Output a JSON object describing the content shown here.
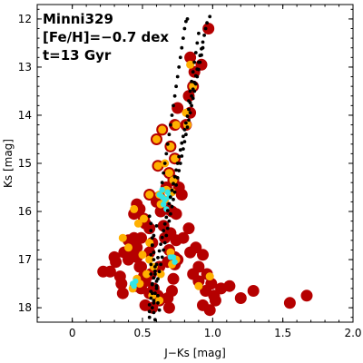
{
  "chart_data": {
    "type": "scatter",
    "title": "",
    "xlabel": "J−Ks [mag]",
    "ylabel": "Ks [mag]",
    "xlim": [
      -0.25,
      2.0
    ],
    "ylim": [
      18.3,
      11.7
    ],
    "y_inverted": true,
    "grid": false,
    "xticks": [
      "0",
      "0.5",
      "1.0",
      "1.5",
      "2.0"
    ],
    "yticks": [
      "12",
      "13",
      "14",
      "15",
      "16",
      "17",
      "18"
    ],
    "annotations": [
      "Minni329",
      "[Fe/H]=−0.7 dex",
      "t=13 Gyr"
    ],
    "colors": {
      "stars_red": "#B50000",
      "stars_orange": "#FFB000",
      "stars_cyan": "#33E5E5",
      "isochrone": "#000000"
    },
    "series": [
      {
        "role": "observed stars",
        "marker": "large red circle",
        "x": [
          0.97,
          0.84,
          0.92,
          0.87,
          0.86,
          0.83,
          0.75,
          0.84,
          0.81,
          0.73,
          0.64,
          0.6,
          0.7,
          0.73,
          0.61,
          0.69,
          0.72,
          0.67,
          0.76,
          0.78,
          0.55,
          0.62,
          0.6,
          0.66,
          0.63,
          0.71,
          0.74,
          0.68,
          0.46,
          0.48,
          0.44,
          0.51,
          0.52,
          0.55,
          0.49,
          0.4,
          0.46,
          0.44,
          0.37,
          0.4,
          0.31,
          0.3,
          0.27,
          0.22,
          0.34,
          0.45,
          0.49,
          0.58,
          0.55,
          0.61,
          0.62,
          0.68,
          0.71,
          0.72,
          0.73,
          0.75,
          0.84,
          0.88,
          0.93,
          0.79,
          0.83,
          0.7,
          0.65,
          0.66,
          0.57,
          0.55,
          0.44,
          0.43,
          0.46,
          0.48,
          0.35,
          0.36,
          0.49,
          0.51,
          0.52,
          0.56,
          0.62,
          0.68,
          0.73,
          0.69,
          0.74,
          0.86,
          0.9,
          0.9,
          0.96,
          0.99,
          0.95,
          1.01,
          1.06,
          1.12,
          1.2,
          1.29,
          1.55,
          1.67,
          0.93,
          0.98,
          1.02,
          0.69,
          0.57,
          0.52
        ],
        "y": [
          12.2,
          12.8,
          12.95,
          13.1,
          13.4,
          13.6,
          13.85,
          13.95,
          14.2,
          14.2,
          14.3,
          14.5,
          14.65,
          14.9,
          15.05,
          15.2,
          15.35,
          15.5,
          15.5,
          15.65,
          15.65,
          15.7,
          15.8,
          15.9,
          16.0,
          16.0,
          16.05,
          15.95,
          15.85,
          15.95,
          16.05,
          16.15,
          16.25,
          16.35,
          16.55,
          16.6,
          16.75,
          16.9,
          16.85,
          17.0,
          17.05,
          16.95,
          17.25,
          17.25,
          17.35,
          17.55,
          17.6,
          17.6,
          17.7,
          17.75,
          17.85,
          17.8,
          17.65,
          17.4,
          17.1,
          17.0,
          16.85,
          16.75,
          16.9,
          16.55,
          16.35,
          16.45,
          16.3,
          16.55,
          16.65,
          16.85,
          16.55,
          16.7,
          16.95,
          17.15,
          17.5,
          17.7,
          17.15,
          17.35,
          17.45,
          17.3,
          17.15,
          17.05,
          16.95,
          16.8,
          16.6,
          17.3,
          17.15,
          17.45,
          17.3,
          17.5,
          17.65,
          17.75,
          17.6,
          17.55,
          17.8,
          17.65,
          17.9,
          17.75,
          17.95,
          18.05,
          17.85,
          18.0,
          18.0,
          17.95
        ]
      },
      {
        "role": "observed stars",
        "marker": "orange circle",
        "x": [
          0.84,
          0.86,
          0.81,
          0.82,
          0.74,
          0.64,
          0.6,
          0.7,
          0.73,
          0.66,
          0.61,
          0.69,
          0.72,
          0.67,
          0.62,
          0.66,
          0.71,
          0.63,
          0.55,
          0.51,
          0.44,
          0.47,
          0.36,
          0.4,
          0.5,
          0.55,
          0.58,
          0.63,
          0.71,
          0.74,
          0.55,
          0.46,
          0.43,
          0.48,
          0.53,
          0.7,
          0.9,
          0.98,
          0.62,
          0.57
        ],
        "y": [
          12.95,
          13.4,
          13.95,
          14.2,
          14.2,
          14.3,
          14.5,
          14.65,
          14.9,
          15.0,
          15.05,
          15.2,
          15.35,
          15.55,
          15.65,
          15.75,
          15.6,
          15.85,
          15.65,
          16.15,
          15.95,
          16.25,
          16.55,
          16.75,
          16.9,
          17.0,
          17.15,
          17.3,
          17.1,
          17.0,
          16.65,
          17.4,
          17.6,
          17.5,
          17.3,
          16.85,
          17.55,
          17.35,
          17.85,
          17.75
        ]
      },
      {
        "role": "observed stars",
        "marker": "small cyan circle",
        "x": [
          0.62,
          0.64,
          0.65,
          0.66,
          0.68,
          0.67,
          0.69,
          0.64,
          0.72,
          0.73,
          0.7,
          0.43,
          0.44,
          0.45
        ],
        "y": [
          15.65,
          15.7,
          15.85,
          15.75,
          15.6,
          15.95,
          15.7,
          15.55,
          16.95,
          17.05,
          16.95,
          17.5,
          17.55,
          17.45
        ]
      },
      {
        "role": "isochrone",
        "marker": "small black dot",
        "x": [
          0.98,
          0.96,
          0.95,
          0.94,
          0.93,
          0.92,
          0.91,
          0.9,
          0.89,
          0.88,
          0.87,
          0.86,
          0.85,
          0.84,
          0.83,
          0.82,
          0.81,
          0.8,
          0.79,
          0.78,
          0.77,
          0.76,
          0.75,
          0.74,
          0.73,
          0.72,
          0.71,
          0.7,
          0.69,
          0.68,
          0.67,
          0.66,
          0.65,
          0.64,
          0.63,
          0.62,
          0.61,
          0.6,
          0.59,
          0.58,
          0.57,
          0.56,
          0.56,
          0.55,
          0.55,
          0.55,
          0.55,
          0.56,
          0.56,
          0.57,
          0.57,
          0.58,
          0.58,
          0.59,
          0.59,
          0.6,
          0.6,
          0.61,
          0.61,
          0.62,
          0.6,
          0.58,
          0.57,
          0.56,
          0.56,
          0.56,
          0.57,
          0.57,
          0.58,
          0.58,
          0.59,
          0.93,
          0.92,
          0.91,
          0.9,
          0.89,
          0.88,
          0.87,
          0.86,
          0.85,
          0.84,
          0.83,
          0.82,
          0.81,
          0.8,
          0.79,
          0.78,
          0.77,
          0.76,
          0.75,
          0.74,
          0.73,
          0.72,
          0.71,
          0.7,
          0.69,
          0.68,
          0.67,
          0.66,
          0.65,
          0.64,
          0.63,
          0.62,
          0.61,
          0.6,
          0.59,
          0.58,
          0.57,
          0.64,
          0.65,
          0.66,
          0.67,
          0.68,
          0.69,
          0.7,
          0.71,
          0.72,
          0.73,
          0.74,
          0.75,
          0.76,
          0.77,
          0.78,
          0.79,
          0.8,
          0.81,
          0.82,
          0.83,
          0.84,
          0.85,
          0.86,
          0.87,
          0.88,
          0.89,
          0.9
        ],
        "y": [
          11.95,
          12.08,
          12.2,
          12.34,
          12.48,
          12.62,
          12.76,
          12.9,
          13.04,
          13.18,
          13.32,
          13.46,
          13.6,
          13.74,
          13.88,
          14.02,
          14.16,
          14.3,
          14.44,
          14.58,
          14.72,
          14.86,
          15.0,
          15.14,
          15.28,
          15.42,
          15.56,
          15.7,
          15.84,
          15.98,
          16.12,
          16.26,
          16.4,
          16.54,
          16.68,
          16.82,
          16.96,
          17.1,
          17.24,
          17.38,
          17.52,
          17.66,
          17.8,
          17.94,
          18.08,
          18.2,
          16.1,
          16.25,
          16.4,
          16.55,
          16.7,
          16.85,
          17.0,
          17.15,
          17.3,
          17.45,
          17.6,
          17.75,
          17.9,
          18.05,
          16.3,
          16.5,
          16.7,
          16.9,
          17.1,
          17.3,
          17.5,
          17.7,
          17.9,
          18.1,
          18.25,
          12.6,
          12.75,
          12.9,
          13.05,
          13.2,
          13.35,
          13.5,
          13.65,
          13.8,
          13.95,
          14.1,
          14.25,
          14.4,
          14.55,
          14.7,
          14.85,
          15.0,
          15.15,
          15.3,
          15.45,
          15.6,
          15.75,
          15.9,
          16.05,
          16.2,
          16.35,
          16.5,
          16.65,
          16.8,
          16.95,
          17.1,
          17.25,
          17.4,
          17.55,
          17.7,
          17.85,
          18.0,
          15.4,
          15.2,
          15.0,
          14.8,
          14.6,
          14.4,
          14.2,
          14.0,
          13.8,
          13.6,
          13.4,
          13.2,
          13.0,
          12.8,
          12.6,
          12.4,
          12.2,
          12.05,
          12.0,
          13.7,
          13.5,
          13.3,
          13.1,
          12.9,
          12.7,
          12.5,
          12.3
        ]
      }
    ]
  }
}
